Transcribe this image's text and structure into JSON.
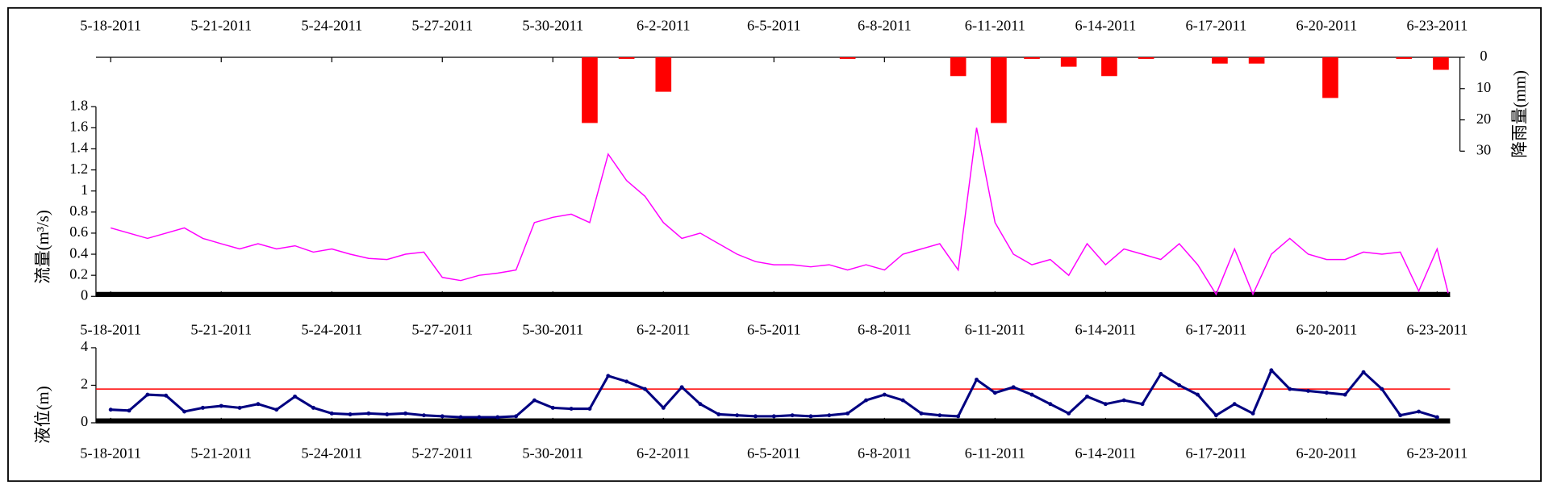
{
  "chart_data": [
    {
      "type": "bar",
      "y_label": "降雨量(mm)",
      "y_axis_side": "right",
      "y_inverted": true,
      "color": "#ff0000",
      "bar_width": 0.43,
      "x": [
        13.0,
        14.0,
        15.0,
        20.0,
        23.0,
        24.1,
        25.0,
        26.0,
        27.1,
        28.1,
        30.1,
        31.1,
        33.1,
        35.1,
        36.1
      ],
      "values": [
        21,
        0.5,
        11,
        0.5,
        6,
        21,
        0.5,
        3,
        6,
        0.5,
        2,
        2,
        13,
        0.5,
        4
      ],
      "xlim": [
        -0.4,
        36.35
      ],
      "ylim": [
        0,
        30
      ],
      "yticks": [
        0,
        10,
        20,
        30
      ],
      "xticks": [
        {
          "value": 0,
          "label": "5-18-2011"
        },
        {
          "value": 3,
          "label": "5-21-2011"
        },
        {
          "value": 6,
          "label": "5-24-2011"
        },
        {
          "value": 9,
          "label": "5-27-2011"
        },
        {
          "value": 12,
          "label": "5-30-2011"
        },
        {
          "value": 15,
          "label": "6-2-2011"
        },
        {
          "value": 18,
          "label": "6-5-2011"
        },
        {
          "value": 21,
          "label": "6-8-2011"
        },
        {
          "value": 24,
          "label": "6-11-2011"
        },
        {
          "value": 27,
          "label": "6-14-2011"
        },
        {
          "value": 30,
          "label": "6-17-2011"
        },
        {
          "value": 33,
          "label": "6-20-2011"
        },
        {
          "value": 36,
          "label": "6-23-2011"
        }
      ]
    },
    {
      "type": "line",
      "y_label": "流量(m³/s)",
      "color": "#ff00ff",
      "x": [
        0,
        0.5,
        1,
        1.5,
        2,
        2.5,
        3,
        3.5,
        4,
        4.5,
        5,
        5.5,
        6,
        6.5,
        7,
        7.5,
        8,
        8.5,
        9,
        9.5,
        10,
        10.5,
        11,
        11.5,
        12,
        12.5,
        13,
        13.5,
        14,
        14.5,
        15,
        15.5,
        16,
        16.5,
        17,
        17.5,
        18,
        18.5,
        19,
        19.5,
        20,
        20.5,
        21,
        21.5,
        22,
        22.5,
        23,
        23.5,
        24,
        24.5,
        25,
        25.5,
        26,
        26.5,
        27,
        27.5,
        28,
        28.5,
        29,
        29.5,
        30,
        30.5,
        31,
        31.5,
        32,
        32.5,
        33,
        33.5,
        34,
        34.5,
        35,
        35.5,
        36,
        36.3
      ],
      "values": [
        0.65,
        0.6,
        0.55,
        0.6,
        0.65,
        0.55,
        0.5,
        0.45,
        0.5,
        0.45,
        0.48,
        0.42,
        0.45,
        0.4,
        0.36,
        0.35,
        0.4,
        0.42,
        0.18,
        0.15,
        0.2,
        0.22,
        0.25,
        0.7,
        0.75,
        0.78,
        0.7,
        1.35,
        1.1,
        0.95,
        0.7,
        0.55,
        0.6,
        0.5,
        0.4,
        0.33,
        0.3,
        0.3,
        0.28,
        0.3,
        0.25,
        0.3,
        0.25,
        0.4,
        0.45,
        0.5,
        0.25,
        1.6,
        0.7,
        0.4,
        0.3,
        0.35,
        0.2,
        0.5,
        0.3,
        0.45,
        0.4,
        0.35,
        0.5,
        0.3,
        0.02,
        0.45,
        0.02,
        0.4,
        0.55,
        0.4,
        0.35,
        0.35,
        0.42,
        0.4,
        0.42,
        0.05,
        0.45,
        0.03
      ],
      "xlim": [
        -0.4,
        36.35
      ],
      "ylim": [
        0,
        1.8
      ],
      "yticks": [
        0,
        0.2,
        0.4,
        0.6,
        0.8,
        1,
        1.2,
        1.4,
        1.6,
        1.8
      ],
      "xticks": [
        {
          "value": 0,
          "label": "5-18-2011"
        },
        {
          "value": 3,
          "label": "5-21-2011"
        },
        {
          "value": 6,
          "label": "5-24-2011"
        },
        {
          "value": 9,
          "label": "5-27-2011"
        },
        {
          "value": 12,
          "label": "5-30-2011"
        },
        {
          "value": 15,
          "label": "6-2-2011"
        },
        {
          "value": 18,
          "label": "6-5-2011"
        },
        {
          "value": 21,
          "label": "6-8-2011"
        },
        {
          "value": 24,
          "label": "6-11-2011"
        },
        {
          "value": 27,
          "label": "6-14-2011"
        },
        {
          "value": 30,
          "label": "6-17-2011"
        },
        {
          "value": 33,
          "label": "6-20-2011"
        },
        {
          "value": 36,
          "label": "6-23-2011"
        }
      ]
    },
    {
      "type": "line",
      "y_label": "液位(m)",
      "color": "#000080",
      "markers": true,
      "reference_line": 1.8,
      "reference_color": "#ff0000",
      "x": [
        0,
        0.5,
        1,
        1.5,
        2,
        2.5,
        3,
        3.5,
        4,
        4.5,
        5,
        5.5,
        6,
        6.5,
        7,
        7.5,
        8,
        8.5,
        9,
        9.5,
        10,
        10.5,
        11,
        11.5,
        12,
        12.5,
        13,
        13.5,
        14,
        14.5,
        15,
        15.5,
        16,
        16.5,
        17,
        17.5,
        18,
        18.5,
        19,
        19.5,
        20,
        20.5,
        21,
        21.5,
        22,
        22.5,
        23,
        23.5,
        24,
        24.5,
        25,
        25.5,
        26,
        26.5,
        27,
        27.5,
        28,
        28.5,
        29,
        29.5,
        30,
        30.5,
        31,
        31.5,
        32,
        32.5,
        33,
        33.5,
        34,
        34.5,
        35,
        35.5,
        36
      ],
      "values": [
        0.7,
        0.65,
        1.5,
        1.45,
        0.6,
        0.8,
        0.9,
        0.8,
        1.0,
        0.7,
        1.4,
        0.8,
        0.5,
        0.45,
        0.5,
        0.45,
        0.5,
        0.4,
        0.35,
        0.3,
        0.3,
        0.3,
        0.35,
        1.2,
        0.8,
        0.75,
        0.75,
        2.5,
        2.2,
        1.8,
        0.8,
        1.9,
        1.0,
        0.45,
        0.4,
        0.35,
        0.35,
        0.4,
        0.35,
        0.4,
        0.5,
        1.2,
        1.5,
        1.2,
        0.5,
        0.4,
        0.35,
        2.3,
        1.6,
        1.9,
        1.5,
        1.0,
        0.5,
        1.4,
        1.0,
        1.2,
        1.0,
        2.6,
        2.0,
        1.5,
        0.4,
        1.0,
        0.5,
        2.8,
        1.8,
        1.7,
        1.6,
        1.5,
        2.7,
        1.8,
        0.4,
        0.6,
        0.3
      ],
      "xlim": [
        -0.4,
        36.35
      ],
      "ylim": [
        0,
        4
      ],
      "yticks": [
        0,
        2,
        4
      ],
      "xticks": [
        {
          "value": 0,
          "label": "5-18-2011"
        },
        {
          "value": 3,
          "label": "5-21-2011"
        },
        {
          "value": 6,
          "label": "5-24-2011"
        },
        {
          "value": 9,
          "label": "5-27-2011"
        },
        {
          "value": 12,
          "label": "5-30-2011"
        },
        {
          "value": 15,
          "label": "6-2-2011"
        },
        {
          "value": 18,
          "label": "6-5-2011"
        },
        {
          "value": 21,
          "label": "6-8-2011"
        },
        {
          "value": 24,
          "label": "6-11-2011"
        },
        {
          "value": 27,
          "label": "6-14-2011"
        },
        {
          "value": 30,
          "label": "6-17-2011"
        },
        {
          "value": 33,
          "label": "6-20-2011"
        },
        {
          "value": 36,
          "label": "6-23-2011"
        }
      ]
    }
  ]
}
